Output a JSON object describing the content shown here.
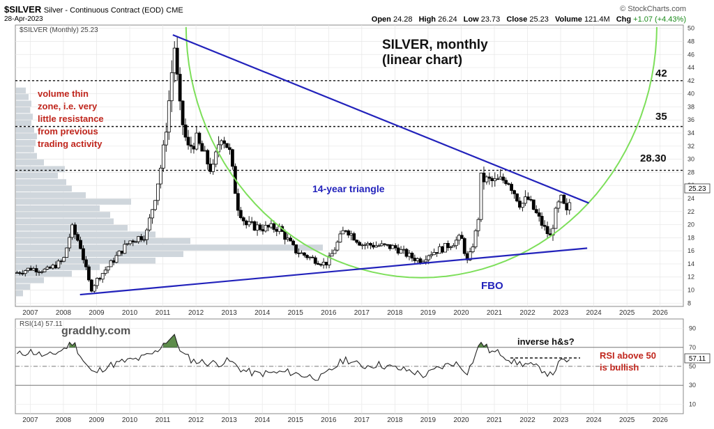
{
  "header": {
    "symbol": "$SILVER",
    "name": "Silver - Continuous Contract (EOD)",
    "exchange": "CME",
    "date": "28-Apr-2023",
    "brand": "© StockCharts.com",
    "open_label": "Open",
    "open": "24.28",
    "high_label": "High",
    "high": "26.24",
    "low_label": "Low",
    "low": "23.73",
    "close_label": "Close",
    "close": "25.23",
    "volume_label": "Volume",
    "volume": "121.4M",
    "chg_label": "Chg",
    "chg": "+1.07 (+4.43%)"
  },
  "price_panel": {
    "legend": "$SILVER (Monthly) 25.23",
    "last_value": "25.23"
  },
  "rsi_panel": {
    "legend": "RSI(14) 57.11",
    "last_value": "57.11"
  },
  "annotations": {
    "title_line1": "SILVER, monthly",
    "title_line2": "(linear chart)",
    "level_42": "42",
    "level_35": "35",
    "level_2830": "28.30",
    "volume_note": [
      "volume thin",
      "zone, i.e. very",
      "little resistance",
      "from previous",
      "trading activity"
    ],
    "triangle": "14-year triangle",
    "fbo": "FBO",
    "watermark": "graddhy.com",
    "inverse_hs": "inverse h&s?",
    "rsi_note": [
      "RSI above 50",
      "is bullish"
    ]
  },
  "colors": {
    "up": "#000000",
    "down": "#000000",
    "trend": "#2222bb",
    "arc": "#7ddf5a",
    "note": "#c0261d",
    "volume": "#cfd6dc"
  },
  "chart_data": [
    {
      "type": "candlestick",
      "title": "$SILVER (Monthly) 25.23",
      "x_unit": "year",
      "xlim": [
        2006.55,
        2026.7
      ],
      "ylim": [
        7.5,
        50.5
      ],
      "x_ticks": [
        "2007",
        "2008",
        "2009",
        "2010",
        "2011",
        "2012",
        "2013",
        "2014",
        "2015",
        "2016",
        "2017",
        "2018",
        "2019",
        "2020",
        "2021",
        "2022",
        "2023",
        "2024",
        "2025",
        "2026"
      ],
      "y_ticks": [
        8,
        10,
        12,
        14,
        16,
        18,
        20,
        22,
        24,
        26,
        28,
        30,
        32,
        34,
        36,
        38,
        40,
        42,
        44,
        46,
        48,
        50
      ],
      "series": [
        {
          "name": "$SILVER",
          "x": [
            2006.5,
            2007.0,
            2007.5,
            2008.0,
            2008.25,
            2008.5,
            2008.83,
            2009.0,
            2009.5,
            2010.0,
            2010.5,
            2010.75,
            2011.0,
            2011.25,
            2011.33,
            2011.5,
            2011.75,
            2012.0,
            2012.5,
            2012.75,
            2013.0,
            2013.25,
            2013.5,
            2014.0,
            2014.5,
            2015.0,
            2015.5,
            2015.9,
            2016.0,
            2016.5,
            2017.0,
            2017.5,
            2018.0,
            2018.5,
            2018.8,
            2019.0,
            2019.5,
            2020.0,
            2020.2,
            2020.5,
            2020.6,
            2021.0,
            2021.4,
            2021.8,
            2022.0,
            2022.5,
            2022.7,
            2022.8,
            2023.0,
            2023.2,
            2023.33
          ],
          "close": [
            12.5,
            13.3,
            13.0,
            14.5,
            19.5,
            17.0,
            10.0,
            11.5,
            14.5,
            17.5,
            18.5,
            24.0,
            30.5,
            42.0,
            48.5,
            38.0,
            31.5,
            33.0,
            28.0,
            34.0,
            31.5,
            23.0,
            20.0,
            19.5,
            19.5,
            16.0,
            14.8,
            14.0,
            14.5,
            19.5,
            17.0,
            16.8,
            16.5,
            15.0,
            14.5,
            15.5,
            16.5,
            18.0,
            14.0,
            20.0,
            27.0,
            26.5,
            27.0,
            23.0,
            24.0,
            19.5,
            18.0,
            21.0,
            24.0,
            21.5,
            25.23
          ]
        }
      ],
      "horizontal_levels": [
        42,
        35,
        28.3
      ],
      "trendlines": [
        {
          "name": "upper",
          "from": [
            2011.3,
            49.0
          ],
          "to": [
            2023.85,
            23.3
          ]
        },
        {
          "name": "lower",
          "from": [
            2008.5,
            9.3
          ],
          "to": [
            2023.8,
            16.4
          ]
        }
      ]
    },
    {
      "type": "line",
      "title": "RSI(14) 57.11",
      "xlim": [
        2006.55,
        2026.7
      ],
      "ylim": [
        0,
        100
      ],
      "y_ticks": [
        10,
        30,
        50,
        70,
        90
      ],
      "reference_lines": [
        70,
        50,
        30
      ],
      "series": [
        {
          "name": "RSI(14)",
          "x": [
            2006.6,
            2007.0,
            2007.5,
            2008.0,
            2008.3,
            2008.6,
            2008.9,
            2009.3,
            2009.8,
            2010.3,
            2010.8,
            2011.0,
            2011.33,
            2011.6,
            2011.9,
            2012.3,
            2012.7,
            2013.0,
            2013.4,
            2013.8,
            2014.3,
            2014.8,
            2015.3,
            2015.8,
            2016.0,
            2016.5,
            2017.0,
            2017.5,
            2018.0,
            2018.5,
            2018.9,
            2019.3,
            2019.8,
            2020.2,
            2020.6,
            2020.9,
            2021.2,
            2021.6,
            2022.0,
            2022.5,
            2022.7,
            2023.0,
            2023.33
          ],
          "values": [
            62,
            66,
            60,
            68,
            76,
            56,
            42,
            50,
            55,
            58,
            65,
            74,
            82,
            63,
            56,
            54,
            53,
            56,
            46,
            42,
            43,
            44,
            40,
            38,
            44,
            58,
            50,
            52,
            48,
            45,
            40,
            48,
            54,
            44,
            76,
            65,
            64,
            54,
            52,
            46,
            40,
            55,
            57.11
          ]
        }
      ]
    }
  ]
}
